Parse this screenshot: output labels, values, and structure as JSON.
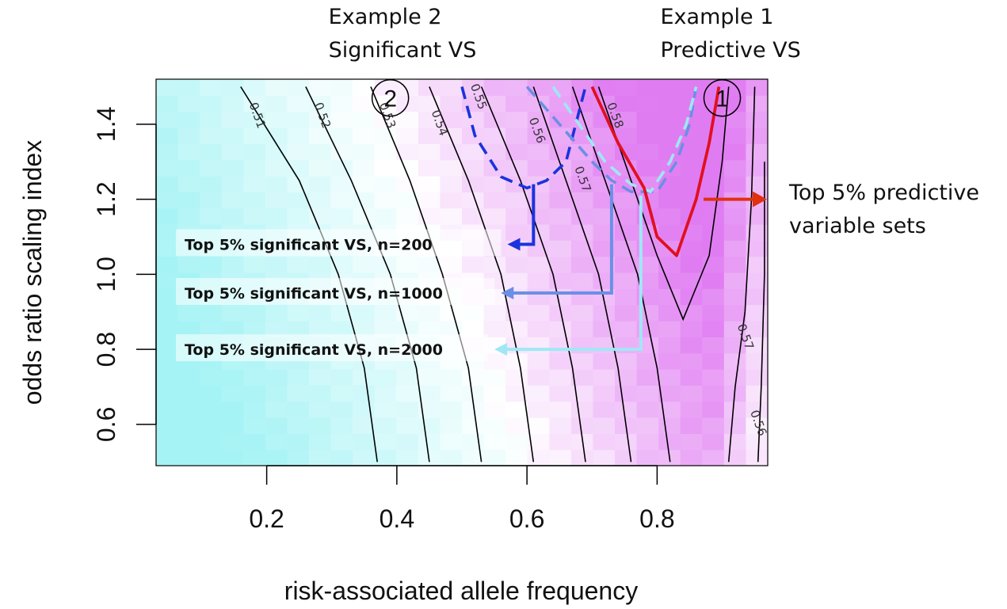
{
  "chart_data": {
    "type": "heatmap",
    "xlabel": "risk-associated allele frequency",
    "ylabel": "odds ratio scaling index",
    "xlim": [
      0.03,
      0.97
    ],
    "ylim": [
      0.49,
      1.52
    ],
    "x_ticks": [
      "0.2",
      "0.4",
      "0.6",
      "0.8"
    ],
    "y_ticks": [
      "0.6",
      "0.8",
      "1.0",
      "1.2",
      "1.4"
    ],
    "color_scale": {
      "low": "#a6f3f5",
      "mid": "#ffffff",
      "high": "#e07cf2"
    },
    "contours": [
      {
        "label": "0.51",
        "points": [
          [
            0.16,
            1.5
          ],
          [
            0.25,
            1.25
          ],
          [
            0.31,
            1.0
          ],
          [
            0.35,
            0.75
          ],
          [
            0.37,
            0.5
          ]
        ]
      },
      {
        "label": "0.52",
        "points": [
          [
            0.26,
            1.5
          ],
          [
            0.33,
            1.25
          ],
          [
            0.39,
            1.0
          ],
          [
            0.43,
            0.75
          ],
          [
            0.45,
            0.5
          ]
        ]
      },
      {
        "label": "0.53",
        "points": [
          [
            0.36,
            1.5
          ],
          [
            0.42,
            1.25
          ],
          [
            0.47,
            1.0
          ],
          [
            0.51,
            0.75
          ],
          [
            0.53,
            0.5
          ]
        ]
      },
      {
        "label": "0.54",
        "points": [
          [
            0.45,
            1.5
          ],
          [
            0.51,
            1.25
          ],
          [
            0.56,
            1.0
          ],
          [
            0.59,
            0.75
          ],
          [
            0.61,
            0.5
          ]
        ]
      },
      {
        "label": "0.55",
        "points": [
          [
            0.53,
            1.5
          ],
          [
            0.59,
            1.25
          ],
          [
            0.64,
            1.0
          ],
          [
            0.67,
            0.75
          ],
          [
            0.69,
            0.5
          ]
        ]
      },
      {
        "label": "0.56",
        "points": [
          [
            0.61,
            1.5
          ],
          [
            0.66,
            1.25
          ],
          [
            0.71,
            1.0
          ],
          [
            0.74,
            0.75
          ],
          [
            0.76,
            0.5
          ]
        ]
      },
      {
        "label": "0.57",
        "points": [
          [
            0.67,
            1.5
          ],
          [
            0.72,
            1.25
          ],
          [
            0.77,
            1.0
          ],
          [
            0.8,
            0.75
          ],
          [
            0.82,
            0.5
          ]
        ]
      },
      {
        "label": "0.58",
        "points": [
          [
            0.71,
            1.5
          ],
          [
            0.76,
            1.25
          ],
          [
            0.8,
            1.05
          ],
          [
            0.84,
            0.88
          ],
          [
            0.88,
            1.05
          ],
          [
            0.9,
            1.3
          ],
          [
            0.91,
            1.5
          ]
        ]
      },
      {
        "label": "0.57",
        "points": [
          [
            0.95,
            1.5
          ],
          [
            0.945,
            1.2
          ],
          [
            0.935,
            0.9
          ],
          [
            0.92,
            0.7
          ],
          [
            0.91,
            0.5
          ]
        ]
      },
      {
        "label": "0.56",
        "points": [
          [
            0.965,
            1.3
          ],
          [
            0.965,
            1.0
          ],
          [
            0.96,
            0.7
          ],
          [
            0.955,
            0.5
          ]
        ]
      }
    ],
    "contour_labels": [
      {
        "text": "0.51",
        "x": 0.18,
        "y": 1.42
      },
      {
        "text": "0.52",
        "x": 0.28,
        "y": 1.42
      },
      {
        "text": "0.53",
        "x": 0.38,
        "y": 1.42
      },
      {
        "text": "0.54",
        "x": 0.46,
        "y": 1.4
      },
      {
        "text": "0.55",
        "x": 0.52,
        "y": 1.47
      },
      {
        "text": "0.56",
        "x": 0.61,
        "y": 1.38
      },
      {
        "text": "0.57",
        "x": 0.68,
        "y": 1.25
      },
      {
        "text": "0.58",
        "x": 0.73,
        "y": 1.42
      },
      {
        "text": "0.57",
        "x": 0.93,
        "y": 0.83
      },
      {
        "text": "0.56",
        "x": 0.95,
        "y": 0.6
      }
    ],
    "series": [
      {
        "name": "Top 5% significant VS, n=200",
        "color": "#1a33dd",
        "dash": true,
        "points": [
          [
            0.5,
            1.5
          ],
          [
            0.52,
            1.37
          ],
          [
            0.56,
            1.26
          ],
          [
            0.6,
            1.23
          ],
          [
            0.63,
            1.25
          ],
          [
            0.66,
            1.3
          ],
          [
            0.675,
            1.4
          ],
          [
            0.69,
            1.5
          ]
        ]
      },
      {
        "name": "Top 5% significant VS, n=1000",
        "color": "#6b8fe6",
        "dash": true,
        "points": [
          [
            0.6,
            1.5
          ],
          [
            0.65,
            1.4
          ],
          [
            0.7,
            1.3
          ],
          [
            0.73,
            1.25
          ],
          [
            0.76,
            1.22
          ],
          [
            0.8,
            1.22
          ],
          [
            0.83,
            1.3
          ],
          [
            0.85,
            1.4
          ],
          [
            0.86,
            1.5
          ]
        ]
      },
      {
        "name": "Top 5% significant VS, n=2000",
        "color": "#9ee8f5",
        "dash": true,
        "points": [
          [
            0.64,
            1.5
          ],
          [
            0.68,
            1.4
          ],
          [
            0.72,
            1.3
          ],
          [
            0.76,
            1.24
          ],
          [
            0.79,
            1.22
          ],
          [
            0.82,
            1.3
          ],
          [
            0.845,
            1.4
          ],
          [
            0.86,
            1.5
          ]
        ]
      },
      {
        "name": "Top 5% predictive variable sets",
        "color": "#e01020",
        "dash": false,
        "points": [
          [
            0.7,
            1.5
          ],
          [
            0.74,
            1.35
          ],
          [
            0.78,
            1.23
          ],
          [
            0.8,
            1.1
          ],
          [
            0.83,
            1.05
          ],
          [
            0.86,
            1.2
          ],
          [
            0.88,
            1.35
          ],
          [
            0.895,
            1.5
          ]
        ]
      }
    ],
    "legend_arrows": [
      {
        "label": "Top 5% significant VS, n=200",
        "color": "#1a33dd",
        "from": [
          0.61,
          1.24
        ],
        "corner_y": 1.08,
        "to_x": 0.57
      },
      {
        "label": "Top 5% significant VS, n=1000",
        "color": "#6b8fe6",
        "from": [
          0.73,
          1.24
        ],
        "corner_y": 0.95,
        "to_x": 0.56
      },
      {
        "label": "Top 5% significant VS, n=2000",
        "color": "#9ee8f5",
        "from": [
          0.775,
          1.21
        ],
        "corner_y": 0.8,
        "to_x": 0.55
      }
    ],
    "examples": [
      {
        "num": "2",
        "lines": [
          "Example 2",
          "Significant VS"
        ],
        "x": 0.39,
        "y": 1.47
      },
      {
        "num": "1",
        "lines": [
          "Example 1",
          "Predictive VS"
        ],
        "x": 0.9,
        "y": 1.47
      }
    ],
    "right_annotation": {
      "lines": [
        "Top 5% predictive",
        "variable sets"
      ],
      "color": "#e03010"
    }
  }
}
